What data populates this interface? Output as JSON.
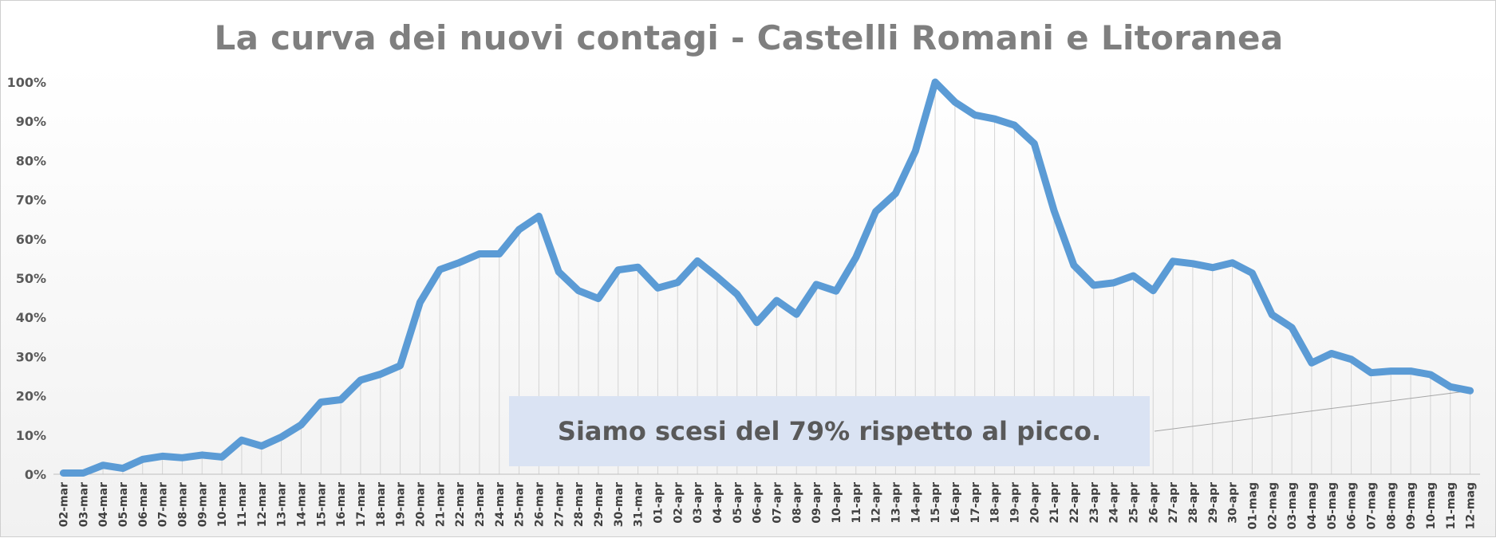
{
  "chart_data": {
    "type": "line",
    "title": "La curva dei nuovi contagi - Castelli Romani e Litoranea",
    "xlabel": "",
    "ylabel": "",
    "ylim": [
      0,
      100
    ],
    "y_unit": "%",
    "y_tick_labels": [
      "0%",
      "10%",
      "20%",
      "30%",
      "40%",
      "50%",
      "60%",
      "70%",
      "80%",
      "90%",
      "100%"
    ],
    "grid": "vertical drop lines only",
    "legend": "none",
    "line_color": "#5b9bd5",
    "x": [
      "02-mar",
      "03-mar",
      "04-mar",
      "05-mar",
      "06-mar",
      "07-mar",
      "08-mar",
      "09-mar",
      "10-mar",
      "11-mar",
      "12-mar",
      "13-mar",
      "14-mar",
      "15-mar",
      "16-mar",
      "17-mar",
      "18-mar",
      "19-mar",
      "20-mar",
      "21-mar",
      "22-mar",
      "23-mar",
      "24-mar",
      "25-mar",
      "26-mar",
      "27-mar",
      "28-mar",
      "29-mar",
      "30-mar",
      "31-mar",
      "01-apr",
      "02-apr",
      "03-apr",
      "04-apr",
      "05-apr",
      "06-apr",
      "07-apr",
      "08-apr",
      "09-apr",
      "10-apr",
      "11-apr",
      "12-apr",
      "13-apr",
      "14-apr",
      "15-apr",
      "16-apr",
      "17-apr",
      "18-apr",
      "19-apr",
      "20-apr",
      "21-apr",
      "22-apr",
      "23-apr",
      "24-apr",
      "25-apr",
      "26-apr",
      "27-apr",
      "28-apr",
      "29-apr",
      "30-apr",
      "01-mag",
      "02-mag",
      "03-mag",
      "04-mag",
      "05-mag",
      "06-mag",
      "07-mag",
      "08-mag",
      "09-mag",
      "10-mag",
      "11-mag",
      "12-mag"
    ],
    "series": [
      {
        "values": [
          0.3,
          0.3,
          2.3,
          1.5,
          3.8,
          4.6,
          4.2,
          4.9,
          4.4,
          8.7,
          7.2,
          9.5,
          12.6,
          18.4,
          19.0,
          24.0,
          25.5,
          27.7,
          43.8,
          52.2,
          54.0,
          56.2,
          56.2,
          62.4,
          65.8,
          51.6,
          46.8,
          44.8,
          52.1,
          52.8,
          47.5,
          48.9,
          54.4,
          50.3,
          45.9,
          38.7,
          44.3,
          40.8,
          48.4,
          46.7,
          55.3,
          67.0,
          71.6,
          82.4,
          100.0,
          94.9,
          91.6,
          90.6,
          89.0,
          84.3,
          67.2,
          53.3,
          48.2,
          48.8,
          50.6,
          46.8,
          54.3,
          53.7,
          52.7,
          53.9,
          51.3,
          40.7,
          37.4,
          28.4,
          30.8,
          29.3,
          25.9,
          26.3,
          26.3,
          25.4,
          22.3,
          21.3
        ]
      }
    ],
    "annotation": {
      "text": "Siamo scesi del 79% rispetto al picco.",
      "points_to": "12-mag"
    }
  }
}
